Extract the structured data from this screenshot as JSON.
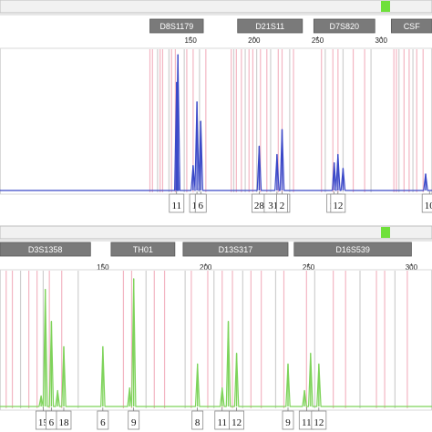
{
  "chart_data": [
    {
      "type": "line",
      "title": "",
      "xlabel": "",
      "ylabel": "",
      "x_range": [
        0,
        340
      ],
      "y_range": [
        0,
        1
      ],
      "x_ticks": [
        {
          "value": 150,
          "label": "150"
        },
        {
          "value": 200,
          "label": "200"
        },
        {
          "value": 250,
          "label": "250"
        },
        {
          "value": 300,
          "label": "300"
        }
      ],
      "series": [
        {
          "color": "#3b49c8"
        }
      ],
      "loci": [
        {
          "name": "D8S1179",
          "start": 118,
          "end": 160
        },
        {
          "name": "D21S11",
          "start": 187,
          "end": 238
        },
        {
          "name": "D7S820",
          "start": 247,
          "end": 295
        },
        {
          "name": "CSF",
          "start": 308,
          "end": 345
        }
      ],
      "bins": [
        118,
        120,
        124,
        126,
        128,
        133,
        135,
        138,
        145,
        147,
        152,
        157,
        162,
        182,
        184,
        186,
        190,
        193,
        196,
        199,
        202,
        205,
        210,
        213,
        219,
        222,
        228,
        231,
        253,
        256,
        262,
        266,
        270,
        278,
        287,
        292,
        310,
        312,
        314,
        318,
        322,
        325,
        328,
        333
      ],
      "peaks": [
        {
          "x": 139,
          "height": 0.78
        },
        {
          "x": 140,
          "height": 0.98
        },
        {
          "x": 152,
          "height": 0.18
        },
        {
          "x": 155,
          "height": 0.64
        },
        {
          "x": 158,
          "height": 0.5
        },
        {
          "x": 204,
          "height": 0.32
        },
        {
          "x": 218,
          "height": 0.26
        },
        {
          "x": 222,
          "height": 0.44
        },
        {
          "x": 263,
          "height": 0.2
        },
        {
          "x": 266,
          "height": 0.26
        },
        {
          "x": 270,
          "height": 0.16
        },
        {
          "x": 335,
          "height": 0.12
        }
      ],
      "allele_labels": [
        {
          "x": 139,
          "label": "11"
        },
        {
          "x": 155,
          "label": "15"
        },
        {
          "x": 158,
          "label": "6"
        },
        {
          "x": 204,
          "label": "28"
        },
        {
          "x": 218,
          "label": "31.2"
        },
        {
          "x": 222,
          "label": "2"
        },
        {
          "x": 263,
          "label": "10"
        },
        {
          "x": 266,
          "label": "12"
        },
        {
          "x": 338,
          "label": "10"
        }
      ]
    },
    {
      "type": "line",
      "title": "",
      "xlabel": "",
      "ylabel": "",
      "x_range": [
        100,
        310
      ],
      "y_range": [
        0,
        1
      ],
      "x_ticks": [
        {
          "value": 150,
          "label": "150"
        },
        {
          "value": 200,
          "label": "200"
        },
        {
          "value": 250,
          "label": "250"
        },
        {
          "value": 300,
          "label": "300"
        }
      ],
      "series": [
        {
          "color": "#7ed35a"
        }
      ],
      "loci": [
        {
          "name": "D3S1358",
          "start": 100,
          "end": 144
        },
        {
          "name": "TH01",
          "start": 154,
          "end": 185
        },
        {
          "name": "D13S317",
          "start": 189,
          "end": 240
        },
        {
          "name": "D16S539",
          "start": 243,
          "end": 300
        }
      ],
      "bins": [
        103,
        106,
        110,
        114,
        118,
        121,
        124,
        130,
        138,
        160,
        164,
        171,
        175,
        180,
        190,
        193,
        201,
        204,
        208,
        213,
        218,
        222,
        227,
        234,
        238,
        249,
        253,
        262,
        268,
        275,
        283,
        287,
        292,
        298
      ],
      "peaks": [
        {
          "x": 120,
          "height": 0.08
        },
        {
          "x": 122,
          "height": 0.88
        },
        {
          "x": 125,
          "height": 0.64
        },
        {
          "x": 128,
          "height": 0.12
        },
        {
          "x": 131,
          "height": 0.45
        },
        {
          "x": 150,
          "height": 0.45
        },
        {
          "x": 163,
          "height": 0.14
        },
        {
          "x": 165,
          "height": 0.96
        },
        {
          "x": 196,
          "height": 0.32
        },
        {
          "x": 208,
          "height": 0.14
        },
        {
          "x": 211,
          "height": 0.64
        },
        {
          "x": 215,
          "height": 0.4
        },
        {
          "x": 240,
          "height": 0.32
        },
        {
          "x": 248,
          "height": 0.12
        },
        {
          "x": 251,
          "height": 0.4
        },
        {
          "x": 255,
          "height": 0.32
        }
      ],
      "allele_labels": [
        {
          "x": 121,
          "label": "15"
        },
        {
          "x": 125,
          "label": "6"
        },
        {
          "x": 131,
          "label": "18"
        },
        {
          "x": 150,
          "label": "6"
        },
        {
          "x": 165,
          "label": "9"
        },
        {
          "x": 196,
          "label": "8"
        },
        {
          "x": 208,
          "label": "11"
        },
        {
          "x": 215,
          "label": "12"
        },
        {
          "x": 240,
          "label": "9"
        },
        {
          "x": 249,
          "label": "11"
        },
        {
          "x": 255,
          "label": "12"
        }
      ]
    }
  ]
}
